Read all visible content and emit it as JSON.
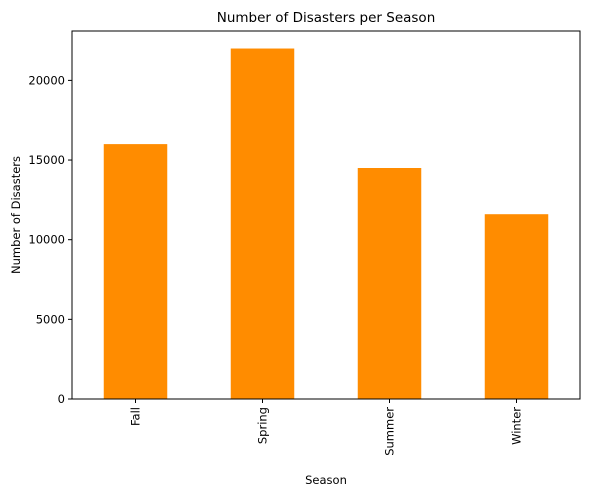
{
  "chart_data": {
    "type": "bar",
    "title": "Number of Disasters per Season",
    "xlabel": "Season",
    "ylabel": "Number of Disasters",
    "categories": [
      "Fall",
      "Spring",
      "Summer",
      "Winter"
    ],
    "values": [
      16000,
      22000,
      14500,
      11600
    ],
    "ylim": [
      0,
      23100
    ],
    "yticks": [
      0,
      5000,
      10000,
      15000,
      20000
    ],
    "ytick_labels": [
      "0",
      "5000",
      "10000",
      "15000",
      "20000"
    ],
    "bar_color": "#ff8c00",
    "grid": false,
    "legend": "none"
  }
}
